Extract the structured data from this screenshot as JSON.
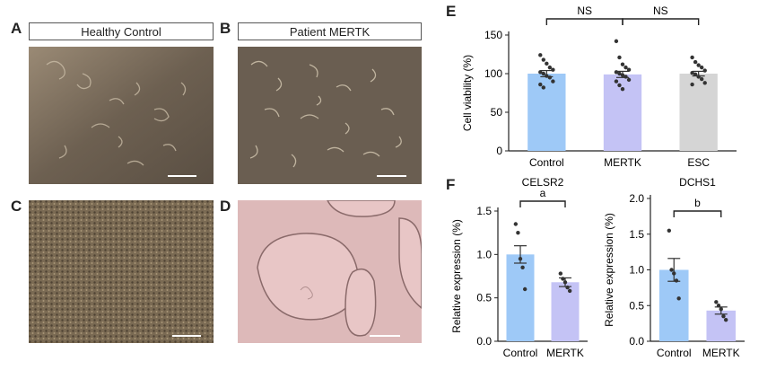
{
  "panels": {
    "A": {
      "letter": "A",
      "label": "Healthy Control"
    },
    "B": {
      "letter": "B",
      "label": "Patient MERTK"
    },
    "C": {
      "letter": "C"
    },
    "D": {
      "letter": "D"
    },
    "E": {
      "letter": "E"
    },
    "F": {
      "letter": "F"
    }
  },
  "colors": {
    "control": "#9ec9f7",
    "mertk": "#c4c3f5",
    "esc": "#d5d5d5"
  },
  "chart_data": [
    {
      "id": "E",
      "type": "bar",
      "categories": [
        "Control",
        "MERTK",
        "ESC"
      ],
      "values": [
        100,
        99,
        100
      ],
      "errors": [
        4,
        4,
        3
      ],
      "ylabel": "Cell viability (%)",
      "ylim": [
        0,
        150
      ],
      "yticks": [
        0,
        50,
        100,
        150
      ],
      "significance": [
        {
          "from": 0,
          "to": 1,
          "label": "NS"
        },
        {
          "from": 1,
          "to": 2,
          "label": "NS"
        }
      ],
      "points": [
        [
          124,
          118,
          113,
          108,
          105,
          102,
          100,
          97,
          95,
          90,
          86,
          82
        ],
        [
          142,
          121,
          112,
          108,
          105,
          102,
          100,
          98,
          96,
          92,
          90,
          85,
          80
        ],
        [
          121,
          115,
          111,
          108,
          104,
          101,
          99,
          96,
          93,
          88,
          86
        ]
      ]
    },
    {
      "id": "F-left",
      "type": "bar",
      "title": "CELSR2",
      "categories": [
        "Control",
        "MERTK"
      ],
      "values": [
        1.0,
        0.68
      ],
      "errors": [
        0.1,
        0.05
      ],
      "ylabel": "Relative expression (%)",
      "ylim": [
        0,
        1.5
      ],
      "yticks": [
        "0.0",
        "0.5",
        "1.0",
        "1.5"
      ],
      "significance": [
        {
          "from": 0,
          "to": 1,
          "label": "a"
        }
      ],
      "points": [
        [
          1.35,
          1.25,
          0.95,
          0.85,
          0.6
        ],
        [
          0.78,
          0.72,
          0.68,
          0.62,
          0.58
        ]
      ]
    },
    {
      "id": "F-right",
      "type": "bar",
      "title": "DCHS1",
      "categories": [
        "Control",
        "MERTK"
      ],
      "values": [
        1.0,
        0.43
      ],
      "errors": [
        0.16,
        0.05
      ],
      "ylabel": "Relative expression (%)",
      "ylim": [
        0,
        2.0
      ],
      "yticks": [
        "0.0",
        "0.5",
        "1.0",
        "1.5",
        "2.0"
      ],
      "significance": [
        {
          "from": 0,
          "to": 1,
          "label": "b"
        }
      ],
      "points": [
        [
          1.55,
          1.0,
          0.95,
          0.85,
          0.6
        ],
        [
          0.55,
          0.5,
          0.45,
          0.35,
          0.3
        ]
      ]
    }
  ]
}
